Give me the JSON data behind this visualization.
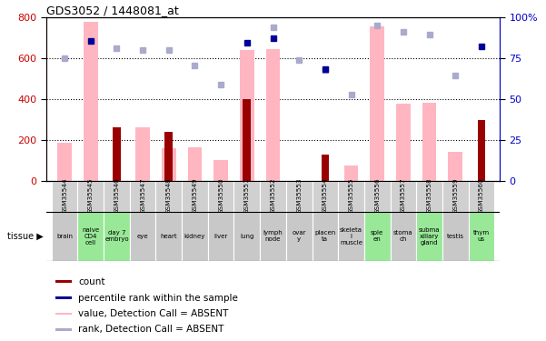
{
  "title": "GDS3052 / 1448081_at",
  "samples": [
    "GSM35544",
    "GSM35545",
    "GSM35546",
    "GSM35547",
    "GSM35548",
    "GSM35549",
    "GSM35550",
    "GSM35551",
    "GSM35552",
    "GSM35553",
    "GSM35554",
    "GSM35555",
    "GSM35556",
    "GSM35557",
    "GSM35558",
    "GSM35559",
    "GSM35560"
  ],
  "tissues": [
    "brain",
    "naive\nCD4\ncell",
    "day 7\nembryo",
    "eye",
    "heart",
    "kidney",
    "liver",
    "lung",
    "lymph\nnode",
    "ovar\ny",
    "placen\nta",
    "skeleta\nl\nmuscle",
    "sple\nen",
    "stoma\nch",
    "subma\nxillary\ngland",
    "testis",
    "thym\nus"
  ],
  "tissue_green": [
    false,
    true,
    true,
    false,
    false,
    false,
    false,
    false,
    false,
    false,
    false,
    false,
    true,
    false,
    true,
    false,
    true
  ],
  "count_values": [
    0,
    0,
    260,
    0,
    240,
    0,
    0,
    400,
    0,
    0,
    130,
    0,
    0,
    0,
    0,
    0,
    295
  ],
  "absent_value_bars": [
    185,
    775,
    0,
    260,
    160,
    165,
    100,
    640,
    645,
    0,
    0,
    75,
    755,
    375,
    380,
    140,
    0
  ],
  "absent_rank_dots": [
    600,
    0,
    650,
    640,
    640,
    565,
    470,
    0,
    750,
    590,
    540,
    420,
    760,
    730,
    715,
    515,
    0
  ],
  "present_rank_dots": [
    0,
    685,
    0,
    0,
    0,
    0,
    0,
    675,
    695,
    0,
    545,
    0,
    0,
    0,
    0,
    0,
    655
  ],
  "ylim_left": [
    0,
    800
  ],
  "yticks_left": [
    0,
    200,
    400,
    600,
    800
  ],
  "yticks_right_labels": [
    "0",
    "25",
    "50",
    "75",
    "100%"
  ],
  "yticks_right_vals": [
    0,
    25,
    50,
    75,
    100
  ],
  "color_count": "#990000",
  "color_rank_dot_present": "#000099",
  "color_absent_value": "#FFB6C1",
  "color_absent_rank": "#AAAACC",
  "bg_color_gray": "#C8C8C8",
  "bg_color_green": "#98E898",
  "bg_color_sample_row": "#D0D0D0",
  "tick_label_color_left": "#CC0000",
  "tick_label_color_right": "#0000CC"
}
